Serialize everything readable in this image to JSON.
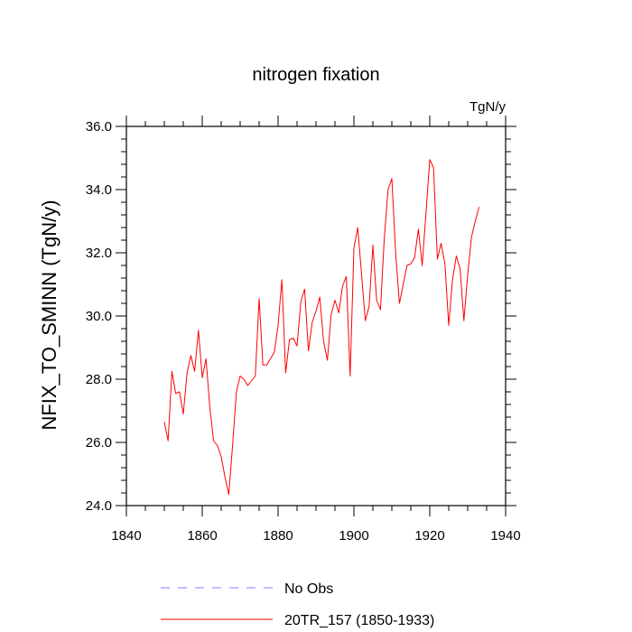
{
  "chart_data": {
    "type": "line",
    "title": "nitrogen fixation",
    "units_label": "TgN/y",
    "ylabel": "NFIX_TO_SMINN  (TgN/y)",
    "xlabel": "",
    "xlim": [
      1840,
      1940
    ],
    "ylim": [
      24.0,
      36.0
    ],
    "xticks": [
      1840,
      1860,
      1880,
      1900,
      1920,
      1940
    ],
    "xtick_labels": [
      "1840",
      "1860",
      "1880",
      "1900",
      "1920",
      "1940"
    ],
    "yticks": [
      24.0,
      26.0,
      28.0,
      30.0,
      32.0,
      34.0,
      36.0
    ],
    "ytick_labels": [
      "24.0",
      "26.0",
      "28.0",
      "30.0",
      "32.0",
      "34.0",
      "36.0"
    ],
    "grid": false,
    "legend_position": "bottom",
    "series": [
      {
        "name": "No Obs",
        "label": "No Obs",
        "color": "#8080ff",
        "dash": "dashed",
        "x": [],
        "values": []
      },
      {
        "name": "20TR_157",
        "label": "20TR_157 (1850-1933)",
        "color": "#ff0000",
        "dash": "solid",
        "x": [
          1850,
          1851,
          1852,
          1853,
          1854,
          1855,
          1856,
          1857,
          1858,
          1859,
          1860,
          1861,
          1862,
          1863,
          1864,
          1865,
          1866,
          1867,
          1868,
          1869,
          1870,
          1871,
          1872,
          1873,
          1874,
          1875,
          1876,
          1877,
          1878,
          1879,
          1880,
          1881,
          1882,
          1883,
          1884,
          1885,
          1886,
          1887,
          1888,
          1889,
          1890,
          1891,
          1892,
          1893,
          1894,
          1895,
          1896,
          1897,
          1898,
          1899,
          1900,
          1901,
          1902,
          1903,
          1904,
          1905,
          1906,
          1907,
          1908,
          1909,
          1910,
          1911,
          1912,
          1913,
          1914,
          1915,
          1916,
          1917,
          1918,
          1919,
          1920,
          1921,
          1922,
          1923,
          1924,
          1925,
          1926,
          1927,
          1928,
          1929,
          1930,
          1931,
          1932,
          1933
        ],
        "values": [
          26.65,
          26.05,
          28.25,
          27.55,
          27.6,
          26.9,
          28.2,
          28.75,
          28.25,
          29.55,
          28.05,
          28.65,
          27.1,
          26.05,
          25.9,
          25.55,
          24.9,
          24.35,
          25.9,
          27.6,
          28.1,
          28.0,
          27.8,
          27.95,
          28.1,
          30.55,
          28.45,
          28.45,
          28.65,
          28.85,
          29.7,
          31.15,
          28.2,
          29.25,
          29.3,
          29.05,
          30.45,
          30.85,
          28.9,
          29.8,
          30.15,
          30.6,
          29.2,
          28.6,
          30.05,
          30.5,
          30.1,
          30.95,
          31.25,
          28.1,
          32.15,
          32.8,
          31.35,
          29.85,
          30.3,
          32.25,
          30.5,
          30.2,
          32.45,
          34.0,
          34.35,
          32.0,
          30.4,
          31.0,
          31.6,
          31.65,
          31.85,
          32.75,
          31.6,
          33.25,
          34.95,
          34.7,
          31.8,
          32.3,
          31.65,
          29.7,
          31.15,
          31.9,
          31.5,
          29.85,
          31.3,
          32.5,
          33.0,
          33.45
        ]
      }
    ]
  }
}
